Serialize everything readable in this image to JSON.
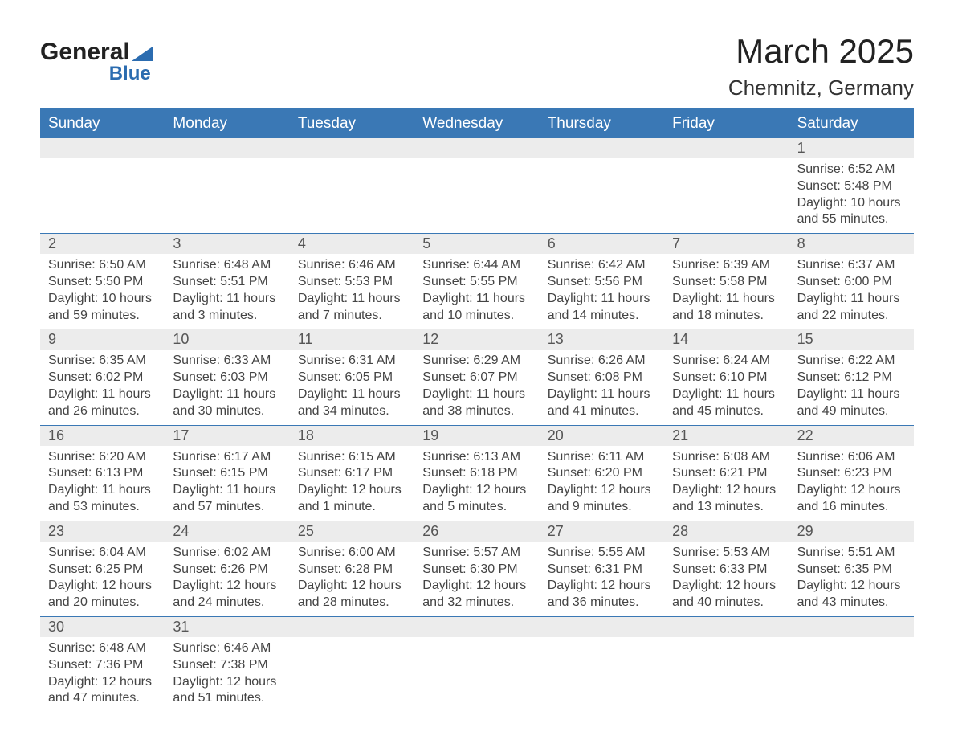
{
  "logo": {
    "word1": "General",
    "word2": "Blue"
  },
  "title": "March 2025",
  "location": "Chemnitz, Germany",
  "colors": {
    "header_bg": "#3a78b5",
    "header_text": "#ffffff",
    "daynum_bg": "#ececec",
    "daynum_text": "#555555",
    "cell_text": "#444444",
    "border": "#3a78b5",
    "logo_accent": "#2b6cb0",
    "page_bg": "#ffffff"
  },
  "typography": {
    "title_fontsize": 42,
    "location_fontsize": 26,
    "dayhead_fontsize": 19,
    "daynum_fontsize": 18,
    "cell_fontsize": 16
  },
  "layout": {
    "columns": 7,
    "first_day_column_index": 6
  },
  "day_headers": [
    "Sunday",
    "Monday",
    "Tuesday",
    "Wednesday",
    "Thursday",
    "Friday",
    "Saturday"
  ],
  "weeks": [
    [
      {
        "day": "",
        "sunrise": "",
        "sunset": "",
        "daylight": ""
      },
      {
        "day": "",
        "sunrise": "",
        "sunset": "",
        "daylight": ""
      },
      {
        "day": "",
        "sunrise": "",
        "sunset": "",
        "daylight": ""
      },
      {
        "day": "",
        "sunrise": "",
        "sunset": "",
        "daylight": ""
      },
      {
        "day": "",
        "sunrise": "",
        "sunset": "",
        "daylight": ""
      },
      {
        "day": "",
        "sunrise": "",
        "sunset": "",
        "daylight": ""
      },
      {
        "day": "1",
        "sunrise": "Sunrise: 6:52 AM",
        "sunset": "Sunset: 5:48 PM",
        "daylight": "Daylight: 10 hours and 55 minutes."
      }
    ],
    [
      {
        "day": "2",
        "sunrise": "Sunrise: 6:50 AM",
        "sunset": "Sunset: 5:50 PM",
        "daylight": "Daylight: 10 hours and 59 minutes."
      },
      {
        "day": "3",
        "sunrise": "Sunrise: 6:48 AM",
        "sunset": "Sunset: 5:51 PM",
        "daylight": "Daylight: 11 hours and 3 minutes."
      },
      {
        "day": "4",
        "sunrise": "Sunrise: 6:46 AM",
        "sunset": "Sunset: 5:53 PM",
        "daylight": "Daylight: 11 hours and 7 minutes."
      },
      {
        "day": "5",
        "sunrise": "Sunrise: 6:44 AM",
        "sunset": "Sunset: 5:55 PM",
        "daylight": "Daylight: 11 hours and 10 minutes."
      },
      {
        "day": "6",
        "sunrise": "Sunrise: 6:42 AM",
        "sunset": "Sunset: 5:56 PM",
        "daylight": "Daylight: 11 hours and 14 minutes."
      },
      {
        "day": "7",
        "sunrise": "Sunrise: 6:39 AM",
        "sunset": "Sunset: 5:58 PM",
        "daylight": "Daylight: 11 hours and 18 minutes."
      },
      {
        "day": "8",
        "sunrise": "Sunrise: 6:37 AM",
        "sunset": "Sunset: 6:00 PM",
        "daylight": "Daylight: 11 hours and 22 minutes."
      }
    ],
    [
      {
        "day": "9",
        "sunrise": "Sunrise: 6:35 AM",
        "sunset": "Sunset: 6:02 PM",
        "daylight": "Daylight: 11 hours and 26 minutes."
      },
      {
        "day": "10",
        "sunrise": "Sunrise: 6:33 AM",
        "sunset": "Sunset: 6:03 PM",
        "daylight": "Daylight: 11 hours and 30 minutes."
      },
      {
        "day": "11",
        "sunrise": "Sunrise: 6:31 AM",
        "sunset": "Sunset: 6:05 PM",
        "daylight": "Daylight: 11 hours and 34 minutes."
      },
      {
        "day": "12",
        "sunrise": "Sunrise: 6:29 AM",
        "sunset": "Sunset: 6:07 PM",
        "daylight": "Daylight: 11 hours and 38 minutes."
      },
      {
        "day": "13",
        "sunrise": "Sunrise: 6:26 AM",
        "sunset": "Sunset: 6:08 PM",
        "daylight": "Daylight: 11 hours and 41 minutes."
      },
      {
        "day": "14",
        "sunrise": "Sunrise: 6:24 AM",
        "sunset": "Sunset: 6:10 PM",
        "daylight": "Daylight: 11 hours and 45 minutes."
      },
      {
        "day": "15",
        "sunrise": "Sunrise: 6:22 AM",
        "sunset": "Sunset: 6:12 PM",
        "daylight": "Daylight: 11 hours and 49 minutes."
      }
    ],
    [
      {
        "day": "16",
        "sunrise": "Sunrise: 6:20 AM",
        "sunset": "Sunset: 6:13 PM",
        "daylight": "Daylight: 11 hours and 53 minutes."
      },
      {
        "day": "17",
        "sunrise": "Sunrise: 6:17 AM",
        "sunset": "Sunset: 6:15 PM",
        "daylight": "Daylight: 11 hours and 57 minutes."
      },
      {
        "day": "18",
        "sunrise": "Sunrise: 6:15 AM",
        "sunset": "Sunset: 6:17 PM",
        "daylight": "Daylight: 12 hours and 1 minute."
      },
      {
        "day": "19",
        "sunrise": "Sunrise: 6:13 AM",
        "sunset": "Sunset: 6:18 PM",
        "daylight": "Daylight: 12 hours and 5 minutes."
      },
      {
        "day": "20",
        "sunrise": "Sunrise: 6:11 AM",
        "sunset": "Sunset: 6:20 PM",
        "daylight": "Daylight: 12 hours and 9 minutes."
      },
      {
        "day": "21",
        "sunrise": "Sunrise: 6:08 AM",
        "sunset": "Sunset: 6:21 PM",
        "daylight": "Daylight: 12 hours and 13 minutes."
      },
      {
        "day": "22",
        "sunrise": "Sunrise: 6:06 AM",
        "sunset": "Sunset: 6:23 PM",
        "daylight": "Daylight: 12 hours and 16 minutes."
      }
    ],
    [
      {
        "day": "23",
        "sunrise": "Sunrise: 6:04 AM",
        "sunset": "Sunset: 6:25 PM",
        "daylight": "Daylight: 12 hours and 20 minutes."
      },
      {
        "day": "24",
        "sunrise": "Sunrise: 6:02 AM",
        "sunset": "Sunset: 6:26 PM",
        "daylight": "Daylight: 12 hours and 24 minutes."
      },
      {
        "day": "25",
        "sunrise": "Sunrise: 6:00 AM",
        "sunset": "Sunset: 6:28 PM",
        "daylight": "Daylight: 12 hours and 28 minutes."
      },
      {
        "day": "26",
        "sunrise": "Sunrise: 5:57 AM",
        "sunset": "Sunset: 6:30 PM",
        "daylight": "Daylight: 12 hours and 32 minutes."
      },
      {
        "day": "27",
        "sunrise": "Sunrise: 5:55 AM",
        "sunset": "Sunset: 6:31 PM",
        "daylight": "Daylight: 12 hours and 36 minutes."
      },
      {
        "day": "28",
        "sunrise": "Sunrise: 5:53 AM",
        "sunset": "Sunset: 6:33 PM",
        "daylight": "Daylight: 12 hours and 40 minutes."
      },
      {
        "day": "29",
        "sunrise": "Sunrise: 5:51 AM",
        "sunset": "Sunset: 6:35 PM",
        "daylight": "Daylight: 12 hours and 43 minutes."
      }
    ],
    [
      {
        "day": "30",
        "sunrise": "Sunrise: 6:48 AM",
        "sunset": "Sunset: 7:36 PM",
        "daylight": "Daylight: 12 hours and 47 minutes."
      },
      {
        "day": "31",
        "sunrise": "Sunrise: 6:46 AM",
        "sunset": "Sunset: 7:38 PM",
        "daylight": "Daylight: 12 hours and 51 minutes."
      },
      {
        "day": "",
        "sunrise": "",
        "sunset": "",
        "daylight": ""
      },
      {
        "day": "",
        "sunrise": "",
        "sunset": "",
        "daylight": ""
      },
      {
        "day": "",
        "sunrise": "",
        "sunset": "",
        "daylight": ""
      },
      {
        "day": "",
        "sunrise": "",
        "sunset": "",
        "daylight": ""
      },
      {
        "day": "",
        "sunrise": "",
        "sunset": "",
        "daylight": ""
      }
    ]
  ]
}
